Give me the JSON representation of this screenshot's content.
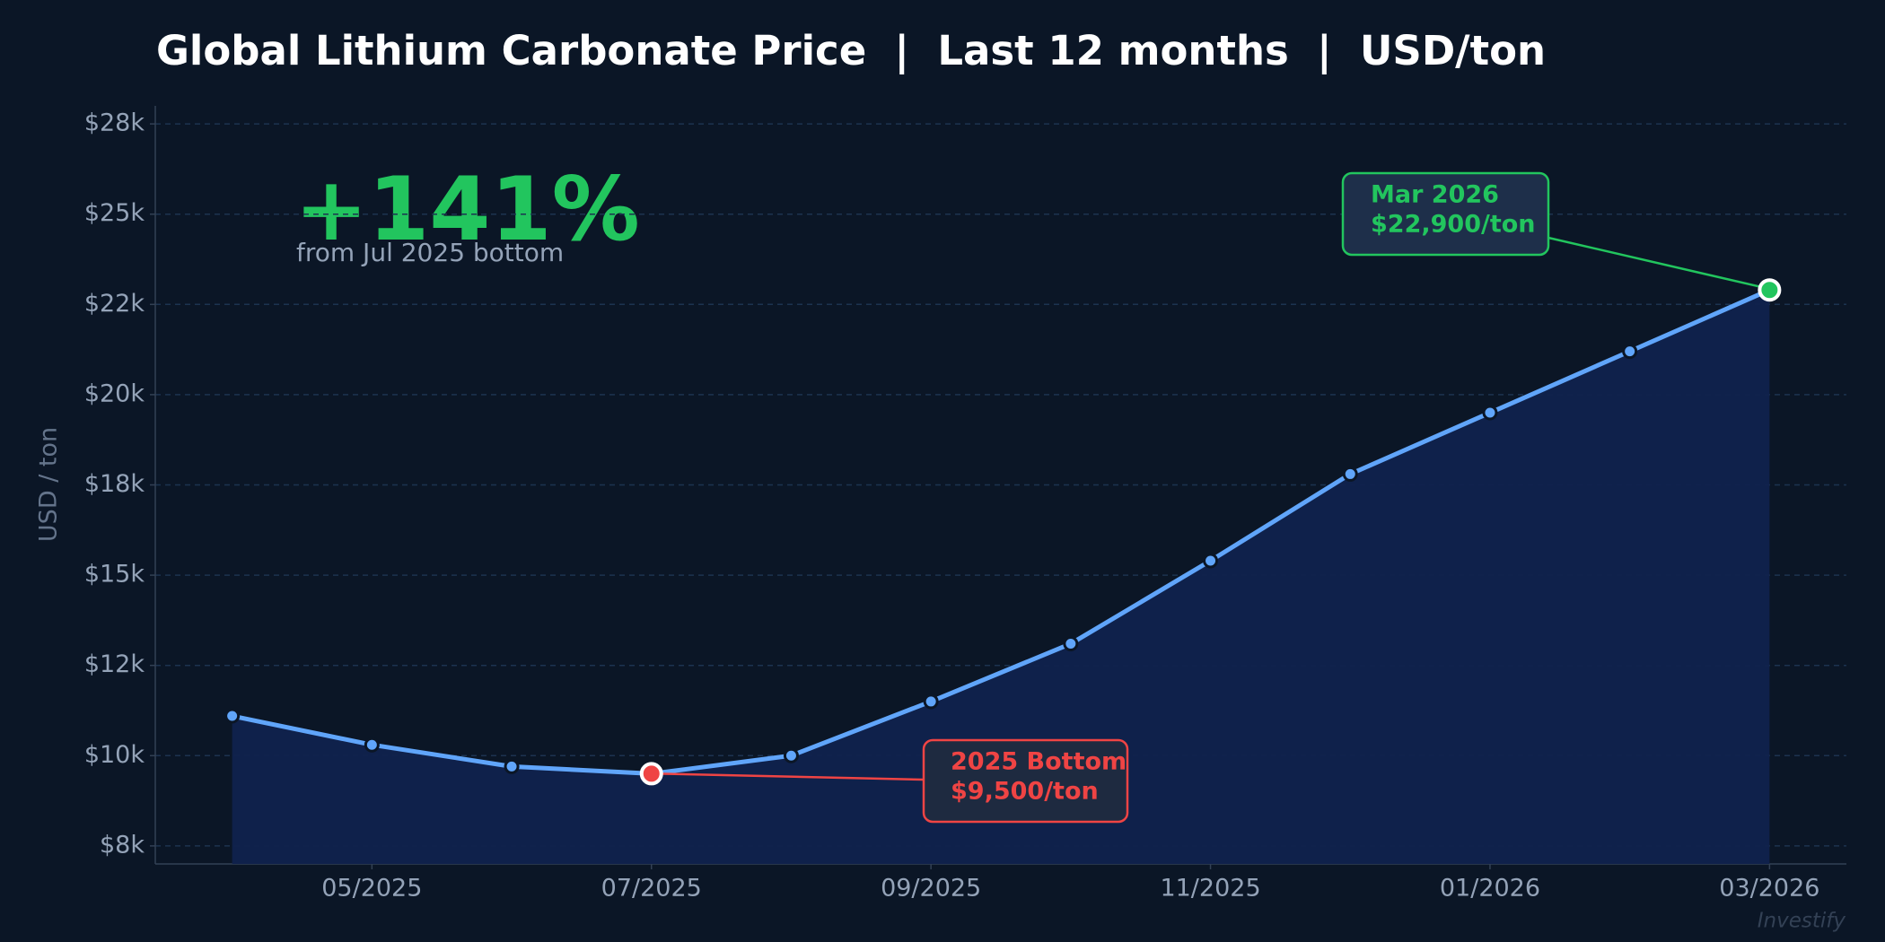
{
  "chart_data": {
    "type": "area-line",
    "title": "Global Lithium Carbonate Price  |  Last 12 months  |  USD/ton",
    "y_label": "USD / ton",
    "x": [
      "2025-04",
      "2025-05",
      "2025-06",
      "2025-07",
      "2025-08",
      "2025-09",
      "2025-10",
      "2025-11",
      "2025-12",
      "2026-01",
      "2026-02",
      "2026-03"
    ],
    "values": [
      11100,
      10300,
      9700,
      9500,
      10000,
      11500,
      13100,
      15400,
      17800,
      19500,
      21200,
      22900
    ],
    "color": "#60a5fa",
    "xticks": [
      {
        "value": "2025-05",
        "label": "05/2025"
      },
      {
        "value": "2025-07",
        "label": "07/2025"
      },
      {
        "value": "2025-09",
        "label": "09/2025"
      },
      {
        "value": "2025-11",
        "label": "11/2025"
      },
      {
        "value": "2026-01",
        "label": "01/2026"
      },
      {
        "value": "2026-03",
        "label": "03/2026"
      }
    ],
    "ylim": [
      7000,
      28000
    ],
    "yticks": [
      {
        "value": 7500,
        "label": "$8k"
      },
      {
        "value": 10000,
        "label": "$10k"
      },
      {
        "value": 12500,
        "label": "$12k"
      },
      {
        "value": 15000,
        "label": "$15k"
      },
      {
        "value": 17500,
        "label": "$18k"
      },
      {
        "value": 20000,
        "label": "$20k"
      },
      {
        "value": 22500,
        "label": "$22k"
      },
      {
        "value": 25000,
        "label": "$25k"
      },
      {
        "value": 27500,
        "label": "$28k"
      }
    ],
    "grid": true,
    "annotations": {
      "headline": "+141%",
      "headline_note": "from Jul 2025 bottom",
      "high_label": [
        "Mar 2026",
        "$22,900/ton"
      ],
      "low_label": [
        "2025 Bottom",
        "$9,500/ton"
      ]
    },
    "watermark": "Investify"
  }
}
